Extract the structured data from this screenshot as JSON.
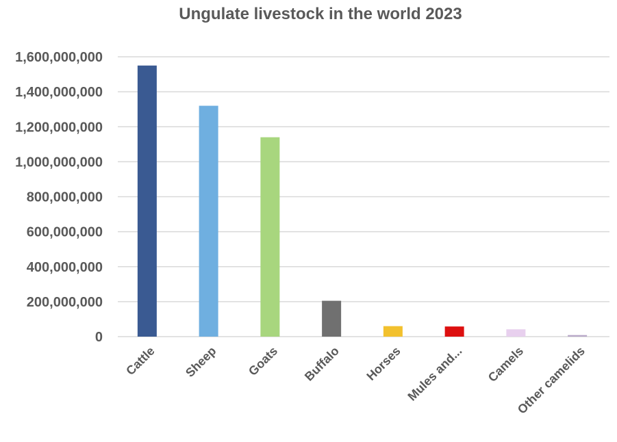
{
  "chart_data": {
    "type": "bar",
    "title": "Ungulate livestock in the world 2023",
    "xlabel": "",
    "ylabel": "",
    "ylim": [
      0,
      1600000000
    ],
    "y_ticks": [
      "0",
      "200,000,000",
      "400,000,000",
      "600,000,000",
      "800,000,000",
      "1,000,000,000",
      "1,200,000,000",
      "1,400,000,000",
      "1,600,000,000"
    ],
    "y_tick_values": [
      0,
      200000000,
      400000000,
      600000000,
      800000000,
      1000000000,
      1200000000,
      1400000000,
      1600000000
    ],
    "categories": [
      "Cattle",
      "Sheep",
      "Goats",
      "Buffalo",
      "Horses",
      "Mules and...",
      "Camels",
      "Other camelids"
    ],
    "values": [
      1550000000,
      1320000000,
      1140000000,
      205000000,
      60000000,
      58000000,
      42000000,
      9000000
    ],
    "colors": [
      "#3a5a92",
      "#6fafe0",
      "#a8d67e",
      "#707070",
      "#f2c12e",
      "#dd1010",
      "#e8d0ee",
      "#b8a8c8"
    ],
    "grid": true,
    "legend": "none"
  }
}
